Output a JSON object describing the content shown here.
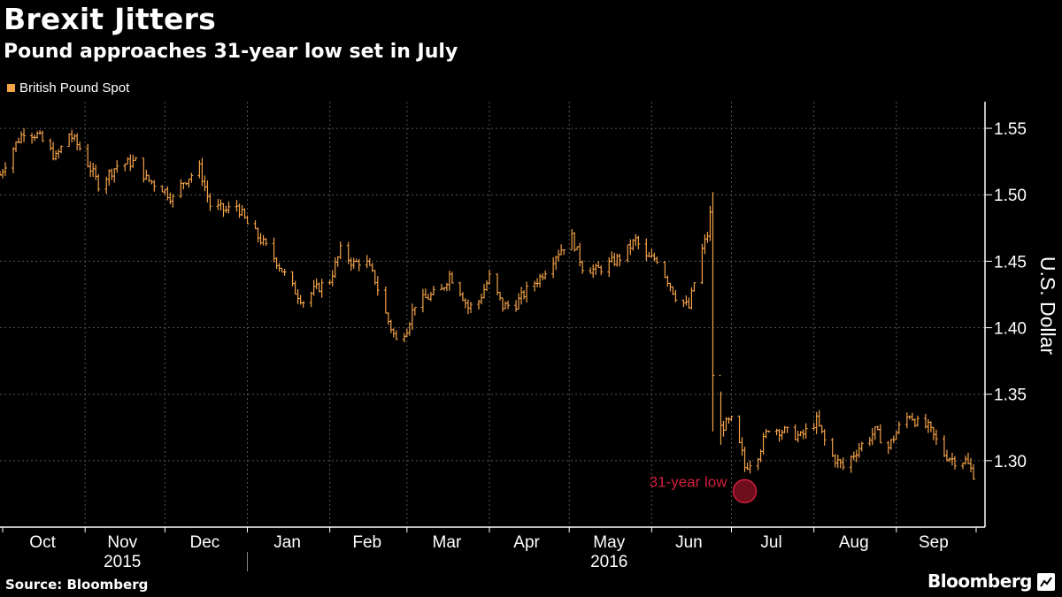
{
  "header": {
    "title": "Brexit Jitters",
    "subtitle": "Pound approaches 31-year low set in July"
  },
  "footer": {
    "source": "Source: Bloomberg",
    "brand": "Bloomberg",
    "brand_icon": "bloomberg-chart-icon"
  },
  "colors": {
    "background": "#000000",
    "series": "#f5a34a",
    "grid": "#555555",
    "annotation": "#d01f3c",
    "text": "#ffffff"
  },
  "chart_data": {
    "type": "bar",
    "style": "ohlc-hi-lo",
    "title": "Brexit Jitters",
    "subtitle": "Pound approaches 31-year low set in July",
    "ylabel": "U.S. Dollar",
    "ylim": [
      1.25,
      1.57
    ],
    "yticks": [
      1.3,
      1.35,
      1.4,
      1.45,
      1.5,
      1.55
    ],
    "ytick_labels": [
      "1.30",
      "1.35",
      "1.40",
      "1.45",
      "1.50",
      "1.55"
    ],
    "x_start": "2015-09-30",
    "x_end": "2016-09-30",
    "month_ticks": [
      "2015-10-01",
      "2015-11-01",
      "2015-12-01",
      "2016-01-01",
      "2016-02-01",
      "2016-03-01",
      "2016-04-01",
      "2016-05-01",
      "2016-06-01",
      "2016-07-01",
      "2016-08-01",
      "2016-09-01",
      "2016-10-01"
    ],
    "month_labels": [
      {
        "label": "Oct",
        "date": "2015-10-16"
      },
      {
        "label": "Nov",
        "date": "2015-11-15"
      },
      {
        "label": "Dec",
        "date": "2015-12-16"
      },
      {
        "label": "Jan",
        "date": "2016-01-16"
      },
      {
        "label": "Feb",
        "date": "2016-02-15"
      },
      {
        "label": "Mar",
        "date": "2016-03-16"
      },
      {
        "label": "Apr",
        "date": "2016-04-15"
      },
      {
        "label": "May",
        "date": "2016-05-16"
      },
      {
        "label": "Jun",
        "date": "2016-06-15"
      },
      {
        "label": "Jul",
        "date": "2016-07-16"
      },
      {
        "label": "Aug",
        "date": "2016-08-16"
      },
      {
        "label": "Sep",
        "date": "2016-09-15"
      }
    ],
    "year_labels": [
      {
        "label": "2015",
        "date": "2015-11-15"
      },
      {
        "label": "2016",
        "date": "2016-05-16"
      }
    ],
    "year_separator": "2016-01-01",
    "grid": true,
    "legend_position": "top-left",
    "series": [
      {
        "name": "British Pound Spot",
        "keypoints": [
          [
            "2015-09-30",
            1.515
          ],
          [
            "2015-10-04",
            1.532
          ],
          [
            "2015-10-09",
            1.548
          ],
          [
            "2015-10-14",
            1.545
          ],
          [
            "2015-10-21",
            1.528
          ],
          [
            "2015-10-26",
            1.546
          ],
          [
            "2015-10-30",
            1.535
          ],
          [
            "2015-11-06",
            1.508
          ],
          [
            "2015-11-13",
            1.522
          ],
          [
            "2015-11-20",
            1.525
          ],
          [
            "2015-11-24",
            1.512
          ],
          [
            "2015-11-30",
            1.505
          ],
          [
            "2015-12-04",
            1.497
          ],
          [
            "2015-12-08",
            1.51
          ],
          [
            "2015-12-14",
            1.52
          ],
          [
            "2015-12-18",
            1.492
          ],
          [
            "2015-12-24",
            1.488
          ],
          [
            "2015-12-28",
            1.492
          ],
          [
            "2016-01-01",
            1.478
          ],
          [
            "2016-01-06",
            1.466
          ],
          [
            "2016-01-12",
            1.45
          ],
          [
            "2016-01-18",
            1.43
          ],
          [
            "2016-01-22",
            1.42
          ],
          [
            "2016-01-26",
            1.428
          ],
          [
            "2016-02-01",
            1.436
          ],
          [
            "2016-02-05",
            1.458
          ],
          [
            "2016-02-10",
            1.448
          ],
          [
            "2016-02-14",
            1.452
          ],
          [
            "2016-02-18",
            1.436
          ],
          [
            "2016-02-22",
            1.41
          ],
          [
            "2016-02-26",
            1.39
          ],
          [
            "2016-03-01",
            1.4
          ],
          [
            "2016-03-04",
            1.418
          ],
          [
            "2016-03-09",
            1.423
          ],
          [
            "2016-03-14",
            1.428
          ],
          [
            "2016-03-17",
            1.44
          ],
          [
            "2016-03-21",
            1.428
          ],
          [
            "2016-03-24",
            1.415
          ],
          [
            "2016-03-28",
            1.42
          ],
          [
            "2016-04-01",
            1.438
          ],
          [
            "2016-04-06",
            1.416
          ],
          [
            "2016-04-11",
            1.418
          ],
          [
            "2016-04-15",
            1.428
          ],
          [
            "2016-04-20",
            1.438
          ],
          [
            "2016-04-26",
            1.455
          ],
          [
            "2016-05-02",
            1.468
          ],
          [
            "2016-05-06",
            1.446
          ],
          [
            "2016-05-11",
            1.443
          ],
          [
            "2016-05-16",
            1.448
          ],
          [
            "2016-05-21",
            1.454
          ],
          [
            "2016-05-26",
            1.466
          ],
          [
            "2016-05-30",
            1.452
          ],
          [
            "2016-06-03",
            1.452
          ],
          [
            "2016-06-06",
            1.44
          ],
          [
            "2016-06-10",
            1.424
          ],
          [
            "2016-06-15",
            1.415
          ],
          [
            "2016-06-19",
            1.453
          ],
          [
            "2016-06-22",
            1.47
          ],
          [
            "2016-06-23",
            1.485
          ],
          [
            "2016-06-24",
            1.365
          ],
          [
            "2016-06-27",
            1.325
          ],
          [
            "2016-07-01",
            1.33
          ],
          [
            "2016-07-05",
            1.305
          ],
          [
            "2016-07-06",
            1.295
          ],
          [
            "2016-07-11",
            1.305
          ],
          [
            "2016-07-15",
            1.325
          ],
          [
            "2016-07-21",
            1.322
          ],
          [
            "2016-07-27",
            1.318
          ],
          [
            "2016-08-02",
            1.33
          ],
          [
            "2016-08-07",
            1.305
          ],
          [
            "2016-08-12",
            1.295
          ],
          [
            "2016-08-18",
            1.31
          ],
          [
            "2016-08-24",
            1.322
          ],
          [
            "2016-08-29",
            1.31
          ],
          [
            "2016-09-02",
            1.325
          ],
          [
            "2016-09-06",
            1.335
          ],
          [
            "2016-09-09",
            1.328
          ],
          [
            "2016-09-13",
            1.325
          ],
          [
            "2016-09-19",
            1.305
          ],
          [
            "2016-09-23",
            1.3
          ],
          [
            "2016-09-27",
            1.3
          ],
          [
            "2016-09-30",
            1.29
          ]
        ]
      }
    ],
    "annotations": [
      {
        "label": "31-year low",
        "date": "2016-07-06",
        "value": 1.277
      }
    ]
  }
}
